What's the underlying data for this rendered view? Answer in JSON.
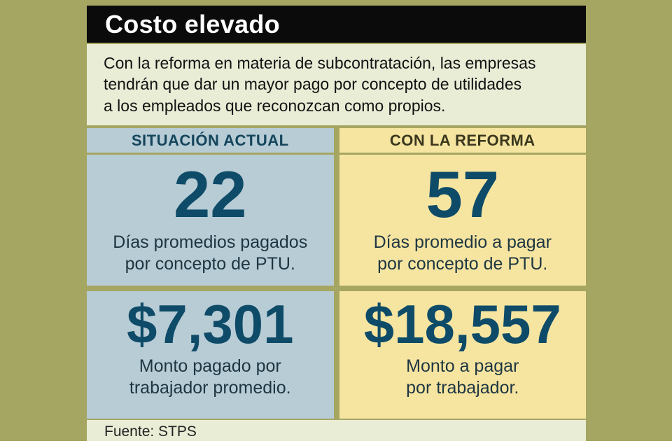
{
  "header": {
    "title": "Costo elevado"
  },
  "intro_lines": [
    "Con la reforma en materia de subcontratación, las empresas",
    "tendrán que dar un mayor pago por concepto de utilidades",
    "a los empleados que reconozcan como propios."
  ],
  "columns": [
    {
      "header": "SITUACIÓN ACTUAL",
      "stats": [
        {
          "value": "22",
          "desc_lines": [
            "Días promedios pagados",
            "por concepto de PTU."
          ]
        },
        {
          "value": "$7,301",
          "desc_lines": [
            "Monto pagado por",
            "trabajador promedio."
          ]
        }
      ]
    },
    {
      "header": "CON LA REFORMA",
      "stats": [
        {
          "value": "57",
          "desc_lines": [
            "Días promedio a pagar",
            "por concepto de PTU."
          ]
        },
        {
          "value": "$18,557",
          "desc_lines": [
            "Monto a pagar",
            "por trabajador."
          ]
        }
      ]
    }
  ],
  "footer": {
    "source": "Fuente: STPS"
  },
  "colors": {
    "background": "#a5a662",
    "title_bar": "#0b0b0b",
    "title_text": "#ffffff",
    "intro_bg": "#e9edd6",
    "left_column_bg": "#b7ccd5",
    "right_column_bg": "#f6e5a1",
    "accent_number": "#0e4b68",
    "footer_bg": "#e9edd6"
  },
  "chart_data": {
    "type": "table",
    "title": "Costo elevado",
    "subtitle": "Con la reforma en materia de subcontratación, las empresas tendrán que dar un mayor pago por concepto de utilidades a los empleados que reconozcan como propios.",
    "columns": [
      "SITUACIÓN ACTUAL",
      "CON LA REFORMA"
    ],
    "rows": [
      {
        "metric": "Días promedio pagados por concepto de PTU",
        "situacion_actual": 22,
        "con_la_reforma": 57
      },
      {
        "metric": "Monto pagado por trabajador promedio (pesos)",
        "situacion_actual": 7301,
        "con_la_reforma": 18557
      }
    ],
    "source": "Fuente: STPS",
    "legend_position": "none",
    "grid": false
  }
}
